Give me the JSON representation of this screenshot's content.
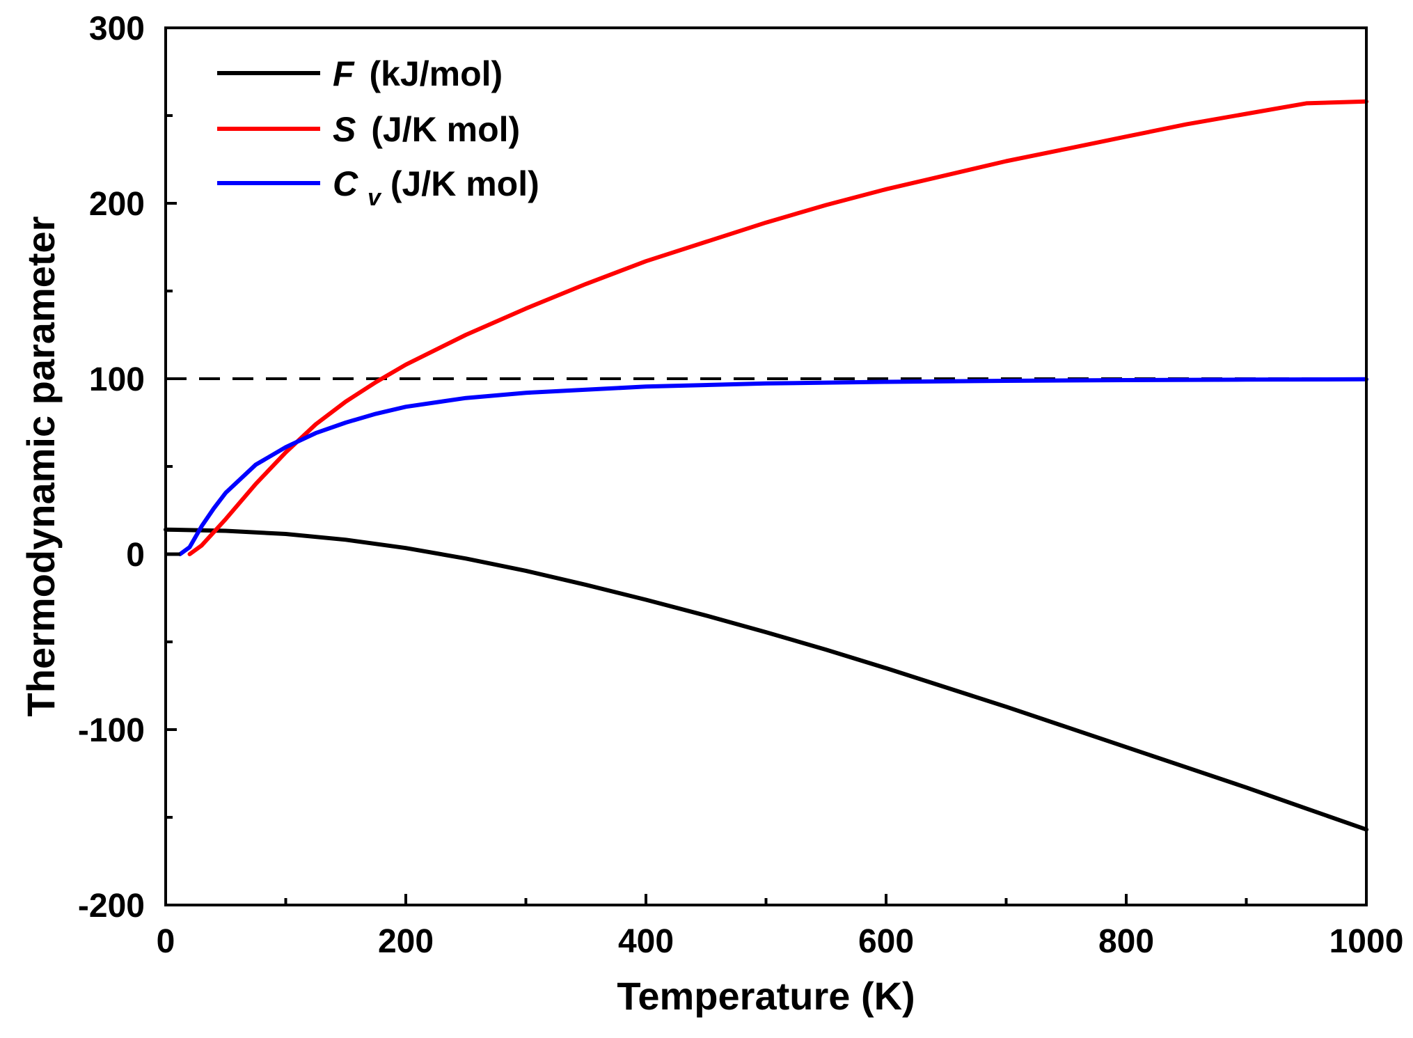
{
  "chart_data": {
    "type": "line",
    "xlabel": "Temperature (K)",
    "ylabel": "Thermodynamic parameter",
    "xlim": [
      0,
      1000
    ],
    "ylim": [
      -200,
      300
    ],
    "x_ticks": [
      0,
      200,
      400,
      600,
      800,
      1000
    ],
    "x_minor_ticks": [
      100,
      300,
      500,
      700,
      900
    ],
    "y_ticks": [
      -200,
      -100,
      0,
      100,
      200,
      300
    ],
    "y_minor_ticks": [
      -150,
      -50,
      50,
      150,
      250
    ],
    "legend_position": "top-left",
    "reference_line": {
      "y": 100,
      "style": "dashed",
      "color": "#000000"
    },
    "series": [
      {
        "name": "F (kJ/mol)",
        "symbol": "F",
        "unit": "(kJ/mol)",
        "color": "#000000",
        "x": [
          0,
          50,
          100,
          150,
          200,
          250,
          300,
          350,
          400,
          450,
          500,
          550,
          600,
          650,
          700,
          750,
          800,
          850,
          900,
          950,
          1000
        ],
        "values": [
          14,
          13.3,
          11.5,
          8.2,
          3.5,
          -2.5,
          -9.5,
          -17.5,
          -26,
          -35,
          -44.5,
          -54.5,
          -65,
          -76,
          -87,
          -98.5,
          -110,
          -121.5,
          -133,
          -145,
          -157
        ]
      },
      {
        "name": "S (J/K mol)",
        "symbol": "S",
        "unit": "(J/K mol)",
        "color": "#ff0000",
        "x": [
          20,
          30,
          50,
          75,
          100,
          125,
          150,
          175,
          200,
          250,
          300,
          350,
          400,
          450,
          500,
          550,
          600,
          650,
          700,
          750,
          800,
          850,
          900,
          950,
          1000
        ],
        "values": [
          0,
          5,
          20,
          40,
          58,
          74,
          87,
          98,
          108,
          125,
          140,
          154,
          167,
          178,
          189,
          199,
          208,
          216,
          224,
          231,
          238,
          245,
          251,
          257,
          258
        ]
      },
      {
        "name": "Cv (J/K mol)",
        "symbol": "C",
        "subscript": "v",
        "unit": "(J/K mol)",
        "color": "#0000ff",
        "x": [
          12,
          20,
          30,
          40,
          50,
          75,
          100,
          125,
          150,
          175,
          200,
          250,
          300,
          400,
          500,
          600,
          700,
          800,
          900,
          1000
        ],
        "values": [
          0,
          4,
          16,
          26,
          35,
          51,
          61,
          69,
          75,
          80,
          84,
          89,
          92,
          95.5,
          97.3,
          98.2,
          98.8,
          99.2,
          99.5,
          99.7
        ]
      }
    ]
  }
}
